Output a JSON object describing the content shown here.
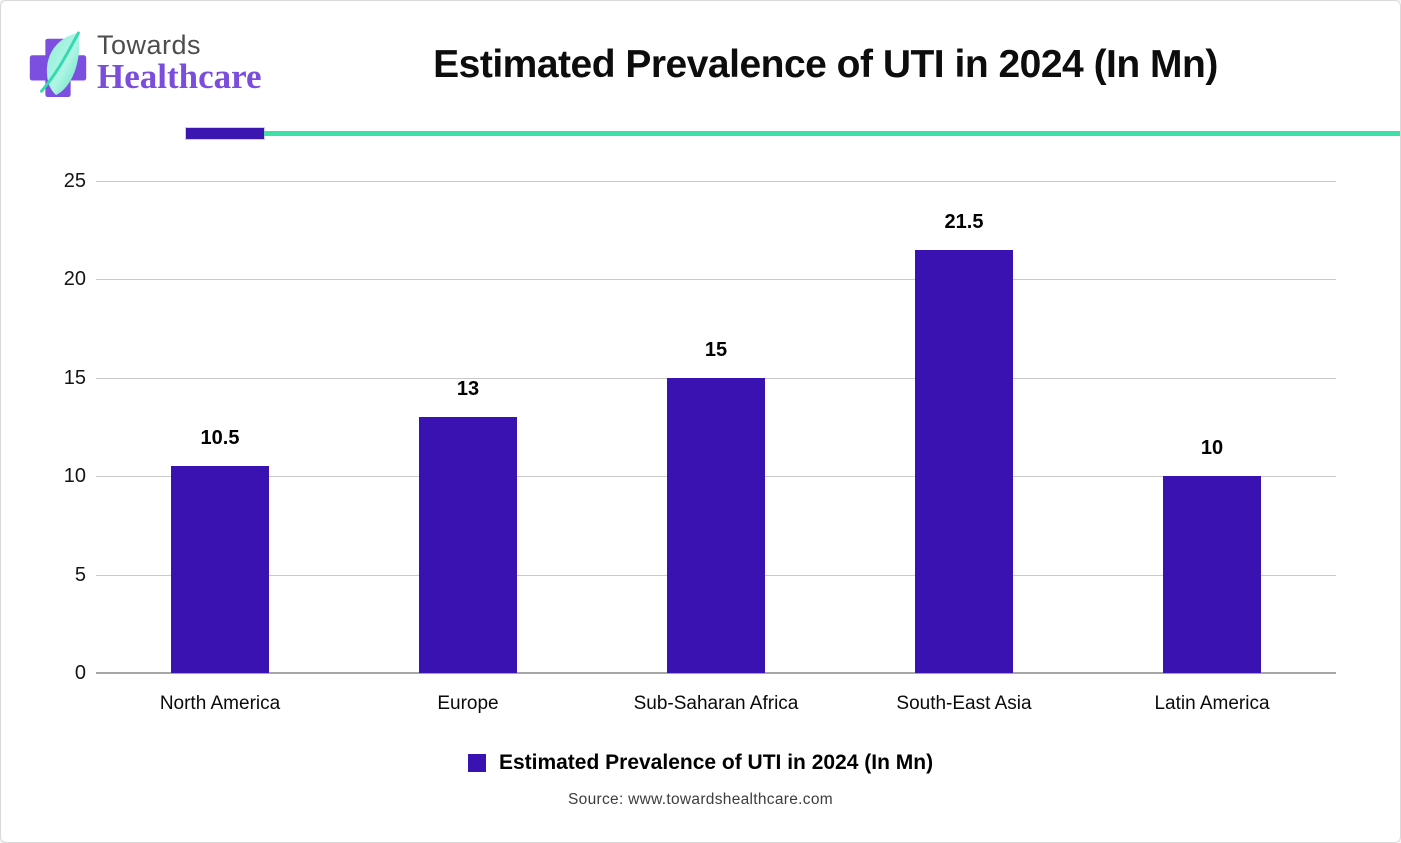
{
  "header": {
    "logo": {
      "line1": "Towards",
      "line2": "Healthcare"
    },
    "title": "Estimated Prevalence of UTI in 2024 (In Mn)"
  },
  "chart_data": {
    "type": "bar",
    "title": "Estimated Prevalence of UTI in 2024 (In Mn)",
    "categories": [
      "North America",
      "Europe",
      "Sub-Saharan Africa",
      "South-East Asia",
      "Latin America"
    ],
    "values": [
      10.5,
      13,
      15,
      21.5,
      10
    ],
    "value_labels": [
      "10.5",
      "13",
      "15",
      "21.5",
      "10"
    ],
    "xlabel": "",
    "ylabel": "",
    "ylim": [
      0,
      25
    ],
    "ytick_step": 5,
    "yticks": [
      0,
      5,
      10,
      15,
      20,
      25
    ],
    "grid": "horizontal",
    "bar_color": "#3B12B2",
    "legend_position": "bottom"
  },
  "legend": {
    "label": "Estimated Prevalence of UTI in 2024 (In Mn)",
    "swatch_color": "#3B12B2"
  },
  "footer": {
    "source": "Source: www.towardshealthcare.com"
  },
  "colors": {
    "accent_purple": "#3B12B2",
    "accent_teal": "#3FE0A8",
    "logo_cross": "#7C4FE0",
    "logo_leaf_light": "#A9F2DE",
    "logo_leaf_dark": "#3FDDB4",
    "gridline": "#C9C9C9",
    "baseline": "#A6A6A6"
  }
}
